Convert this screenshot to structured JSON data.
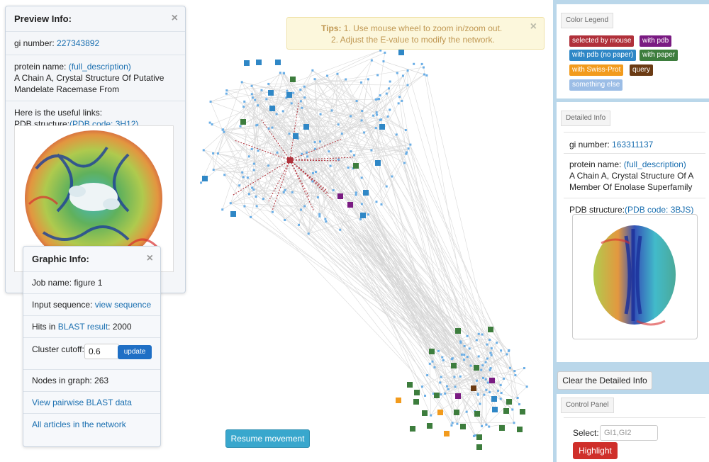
{
  "preview": {
    "title": "Preview Info:",
    "close": "×",
    "gi_label": "gi number:",
    "gi_value": "227343892",
    "protein_label": "protein name:",
    "protein_link": "(full_description)",
    "protein_line1": "A Chain A, Crystal Structure Of Putative",
    "protein_line2": "Mandelate Racemase From",
    "useful": "Here is the useful links:",
    "pdb_label": "PDB structure:",
    "pdb_link": "(PDB code: 3H12)"
  },
  "graphic": {
    "title": "Graphic Info:",
    "close": "×",
    "job_label": "Job name:",
    "job_value": "figure 1",
    "input_label": "Input sequence:",
    "input_link": "view sequence",
    "hits_label": "Hits in",
    "hits_link": "BLAST result",
    "hits_value": ": 2000",
    "cutoff_label": "Cluster cutoff:",
    "cutoff_value": "0.6",
    "update_label": "update",
    "nodes_text": "Nodes in graph: 263",
    "pairwise_link": "View pairwise BLAST data",
    "articles_link": "All articles in the network"
  },
  "tips": {
    "prefix": "Tips:",
    "line1": "1. Use mouse wheel to zoom in/zoom out.",
    "line2": "2. Adjust the E-value to modify the network.",
    "close": "×"
  },
  "resume_label": "Resume movement",
  "legend": {
    "title": "Color Legend",
    "items": [
      {
        "label": "selected by mouse",
        "color": "#b0303a"
      },
      {
        "label": "with pdb",
        "color": "#7a1b82"
      },
      {
        "label": "with pdb (no paper)",
        "color": "#2f87c6"
      },
      {
        "label": "with paper",
        "color": "#3d7d3d"
      },
      {
        "label": "with Swiss-Prot",
        "color": "#f29b1d"
      },
      {
        "label": "query",
        "color": "#6b3b14"
      },
      {
        "label": "something else",
        "color": "#9bbde6"
      }
    ]
  },
  "detailed": {
    "title": "Detailed Info",
    "gi_label": "gi number:",
    "gi_value": "163311137",
    "protein_label": "protein name:",
    "protein_link": "(full_description)",
    "protein_line1": "A Chain A, Crystal Structure Of A",
    "protein_line2": "Member Of Enolase Superfamily",
    "pdb_label": "PDB structure:",
    "pdb_link": "(PDB code: 3BJS)"
  },
  "clear_label": "Clear the Detailed Info",
  "control": {
    "title": "Control Panel",
    "select_label": "Select:",
    "select_placeholder": "GI1,GI2",
    "highlight_label": "Highlight"
  }
}
